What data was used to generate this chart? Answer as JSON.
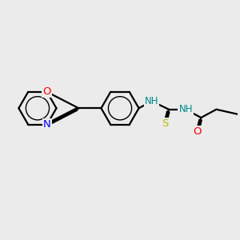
{
  "bg_color": "#ebebeb",
  "bond_color": "#000000",
  "bond_width": 1.6,
  "atom_colors": {
    "O": "#ff0000",
    "N": "#0000ff",
    "S": "#bbbb00",
    "NH": "#008b8b",
    "C": "#000000"
  },
  "font_size": 8.5,
  "fig_size": [
    3.0,
    3.0
  ],
  "dpi": 100
}
